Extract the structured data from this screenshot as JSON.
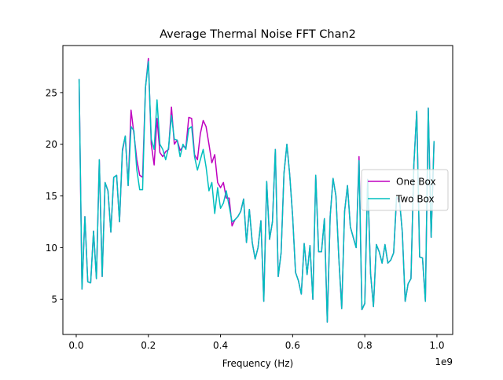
{
  "chart_data": {
    "type": "line",
    "title": "Average Thermal Noise FFT Chan2",
    "xlabel": "Frequency (Hz)",
    "x_offset_label": "1e9",
    "x": [
      8000000,
      16000000,
      24000000,
      32000000,
      40000000,
      48000000,
      56000000,
      64000000,
      72000000,
      80000000,
      88000000,
      96000000,
      104000000,
      112000000,
      120000000,
      128000000,
      136000000,
      144000000,
      152000000,
      160000000,
      168000000,
      176000000,
      184000000,
      192000000,
      200000000,
      208000000,
      216000000,
      224000000,
      232000000,
      240000000,
      248000000,
      256000000,
      264000000,
      272000000,
      280000000,
      288000000,
      296000000,
      304000000,
      312000000,
      320000000,
      328000000,
      336000000,
      344000000,
      352000000,
      360000000,
      368000000,
      376000000,
      384000000,
      392000000,
      400000000,
      408000000,
      416000000,
      424000000,
      432000000,
      440000000,
      448000000,
      456000000,
      464000000,
      472000000,
      480000000,
      488000000,
      496000000,
      504000000,
      512000000,
      520000000,
      528000000,
      536000000,
      544000000,
      552000000,
      560000000,
      568000000,
      576000000,
      584000000,
      592000000,
      600000000,
      608000000,
      616000000,
      624000000,
      632000000,
      640000000,
      648000000,
      656000000,
      664000000,
      672000000,
      680000000,
      688000000,
      696000000,
      704000000,
      712000000,
      720000000,
      728000000,
      736000000,
      744000000,
      752000000,
      760000000,
      768000000,
      776000000,
      784000000,
      792000000,
      800000000,
      808000000,
      816000000,
      824000000,
      832000000,
      840000000,
      848000000,
      856000000,
      864000000,
      872000000,
      880000000,
      888000000,
      896000000,
      904000000,
      912000000,
      920000000,
      928000000,
      936000000,
      944000000,
      952000000,
      960000000,
      968000000,
      976000000,
      984000000,
      992000000
    ],
    "series": [
      {
        "name": "One Box",
        "color": "#bf00bf",
        "values": [
          26.3,
          6,
          13,
          6.7,
          6.6,
          11.6,
          7,
          18.5,
          7.2,
          16.3,
          15.5,
          11.5,
          16.8,
          17,
          12.5,
          19.3,
          20.8,
          16,
          23.3,
          21,
          18.5,
          17,
          16.8,
          25.5,
          28.3,
          20,
          18,
          22.5,
          19.2,
          18.8,
          19.3,
          19.5,
          23.6,
          20,
          20.4,
          19.4,
          19.8,
          19.7,
          22.6,
          22.5,
          19,
          18.5,
          21,
          22.3,
          21.7,
          20,
          18.2,
          19,
          16.3,
          15.8,
          16.3,
          14.8,
          14.8,
          12.1,
          12.7,
          13,
          13.5,
          14.7,
          10.5,
          13.7,
          10.5,
          8.9,
          10,
          12.6,
          4.8,
          16.4,
          10.8,
          12.5,
          19.5,
          7.2,
          9.5,
          17.2,
          20,
          17,
          13,
          7.6,
          6.8,
          5.5,
          10.4,
          7.4,
          10.2,
          5,
          17,
          9.6,
          9.6,
          12.8,
          2.8,
          13,
          16.7,
          15,
          9,
          4.1,
          13.5,
          16,
          12,
          11,
          10,
          18.8,
          4,
          4.6,
          16.6,
          7.5,
          4.3,
          10.3,
          9.6,
          8.5,
          10.3,
          8.5,
          8.8,
          9.5,
          14.7,
          14.7,
          11.5,
          4.8,
          6.5,
          7,
          18,
          23.2,
          9.1,
          9,
          4.8,
          23.5,
          11,
          20.3
        ]
      },
      {
        "name": "Two Box",
        "color": "#00bfbf",
        "values": [
          26.3,
          6,
          13,
          6.7,
          6.6,
          11.6,
          7,
          18.5,
          7.2,
          16.3,
          15.5,
          11.5,
          16.8,
          17,
          12.5,
          19.5,
          20.8,
          16,
          21.7,
          21.3,
          17.5,
          15.6,
          15.6,
          25.5,
          28,
          20.5,
          19.5,
          24.3,
          20,
          19.5,
          18.5,
          19.7,
          22.8,
          20.5,
          20.4,
          18.8,
          20,
          19.5,
          21.5,
          21.7,
          18.8,
          17.5,
          18.5,
          19.5,
          17.8,
          15.5,
          16.3,
          13.3,
          15.8,
          13.8,
          14.3,
          15.5,
          14,
          12.5,
          12.7,
          13,
          13.5,
          14.7,
          10.5,
          13.7,
          10.5,
          8.9,
          10,
          12.6,
          4.8,
          16.4,
          10.8,
          12.5,
          19.5,
          7.2,
          9.5,
          17.2,
          20,
          17,
          13,
          7.6,
          6.8,
          5.5,
          10.4,
          7.4,
          10.2,
          5,
          17,
          9.6,
          9.6,
          12.8,
          2.8,
          13,
          16.7,
          15,
          9,
          4.1,
          13.5,
          16,
          12,
          11,
          10,
          18.4,
          4,
          4.6,
          16.6,
          7.5,
          4.3,
          10.3,
          9.6,
          8.5,
          10.3,
          8.5,
          8.8,
          9.5,
          14.9,
          14.7,
          11.5,
          4.8,
          6.5,
          7,
          18,
          23.2,
          9.1,
          9,
          4.8,
          23.5,
          11,
          20.3
        ]
      }
    ],
    "xlim": [
      -37000000,
      1043700000
    ],
    "xticks": [
      {
        "value": 0,
        "label": "0.0"
      },
      {
        "value": 200000000,
        "label": "0.2"
      },
      {
        "value": 400000000,
        "label": "0.4"
      },
      {
        "value": 600000000,
        "label": "0.6"
      },
      {
        "value": 800000000,
        "label": "0.8"
      },
      {
        "value": 1000000000,
        "label": "1.0"
      }
    ],
    "ylim": [
      1.6,
      29.55
    ],
    "yticks": [
      5,
      10,
      15,
      20,
      25
    ],
    "legend": "center right"
  }
}
